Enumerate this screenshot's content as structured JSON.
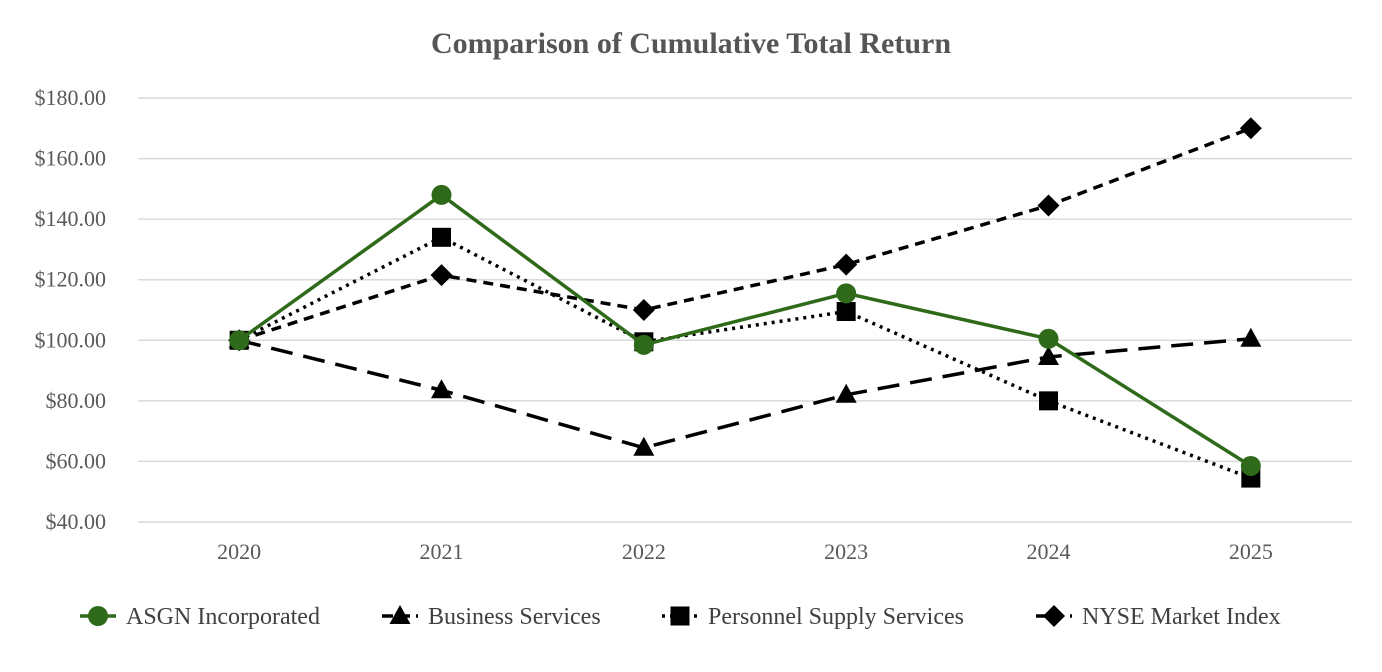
{
  "chart_data": {
    "type": "line",
    "title": "Comparison of Cumulative Total Return",
    "xlabel": "",
    "ylabel": "",
    "categories": [
      "2020",
      "2021",
      "2022",
      "2023",
      "2024",
      "2025"
    ],
    "ylim": [
      40,
      180
    ],
    "ytick_values": [
      40,
      60,
      80,
      100,
      120,
      140,
      160,
      180
    ],
    "ytick_labels": [
      "$40.00",
      "$60.00",
      "$80.00",
      "$100.00",
      "$120.00",
      "$140.00",
      "$160.00",
      "$180.00"
    ],
    "grid": true,
    "legend_position": "bottom",
    "series": [
      {
        "name": "ASGN Incorporated",
        "values": [
          100,
          148,
          98.5,
          115.5,
          100.5,
          58.5
        ],
        "color": "#2e6a1a",
        "line_style": "solid",
        "marker": "circle"
      },
      {
        "name": "Business Services",
        "values": [
          100,
          83.5,
          64.5,
          82,
          94.5,
          100.5
        ],
        "color": "#000000",
        "line_style": "long-dash",
        "marker": "triangle"
      },
      {
        "name": "Personnel Supply Services",
        "values": [
          100,
          134,
          99.5,
          109.5,
          80,
          54.5
        ],
        "color": "#000000",
        "line_style": "dotted",
        "marker": "square"
      },
      {
        "name": "NYSE Market Index",
        "values": [
          100,
          121.5,
          110,
          125,
          144.5,
          170
        ],
        "color": "#000000",
        "line_style": "dashed",
        "marker": "diamond"
      }
    ]
  }
}
